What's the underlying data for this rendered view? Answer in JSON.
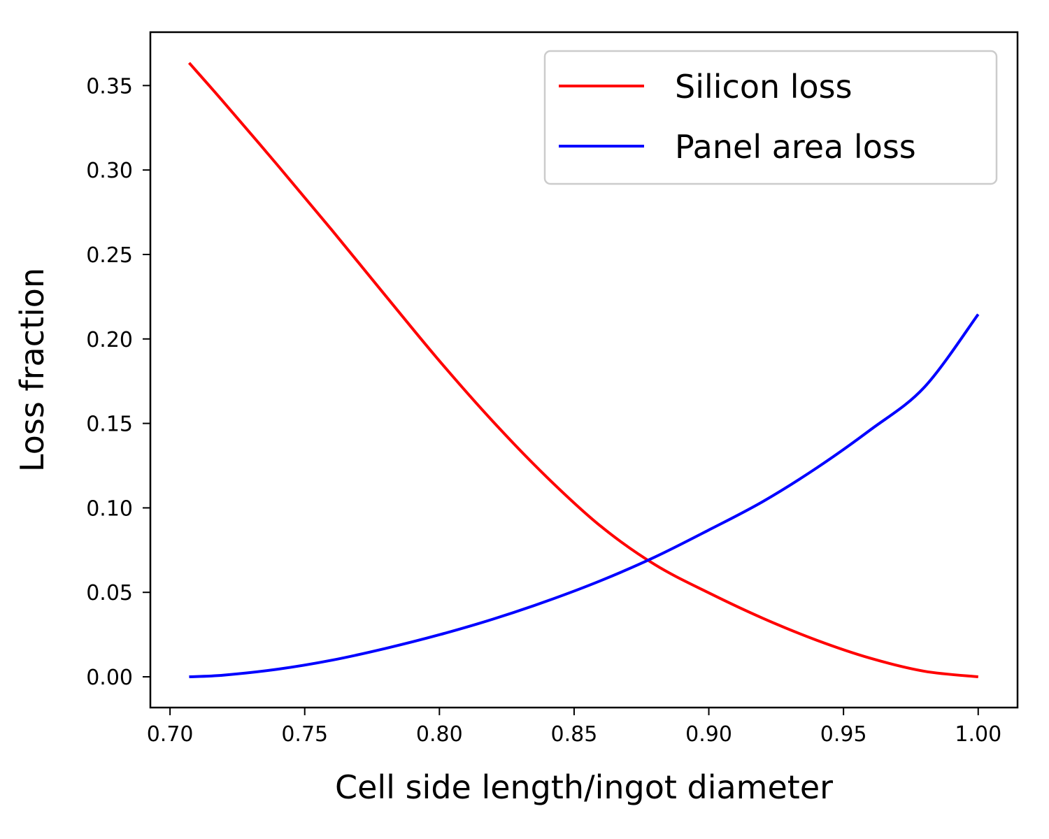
{
  "chart_data": {
    "type": "line",
    "title": "",
    "xlabel": "Cell side length/ingot diameter",
    "ylabel": "Loss fraction",
    "xlim": [
      0.6927,
      1.0146
    ],
    "ylim": [
      -0.0182,
      0.3816
    ],
    "xticks": [
      0.7,
      0.75,
      0.8,
      0.85,
      0.9,
      0.95,
      1.0
    ],
    "yticks": [
      0.0,
      0.05,
      0.1,
      0.15,
      0.2,
      0.25,
      0.3,
      0.35
    ],
    "xtick_labels": [
      "0.70",
      "0.75",
      "0.80",
      "0.85",
      "0.90",
      "0.95",
      "1.00"
    ],
    "ytick_labels": [
      "0.00",
      "0.05",
      "0.10",
      "0.15",
      "0.20",
      "0.25",
      "0.30",
      "0.35"
    ],
    "grid": false,
    "legend": "top-right",
    "series": [
      {
        "name": "Silicon loss",
        "color": "#ff0000",
        "x": [
          0.7071,
          0.72,
          0.74,
          0.76,
          0.78,
          0.8,
          0.82,
          0.84,
          0.86,
          0.88,
          0.9,
          0.92,
          0.94,
          0.96,
          0.98,
          1.0
        ],
        "y": [
          0.3634,
          0.34,
          0.3027,
          0.2646,
          0.2256,
          0.187,
          0.1509,
          0.118,
          0.089,
          0.0664,
          0.0497,
          0.0347,
          0.0217,
          0.011,
          0.0033,
          0.0
        ]
      },
      {
        "name": "Panel area loss",
        "color": "#0000ff",
        "x": [
          0.7071,
          0.72,
          0.74,
          0.76,
          0.78,
          0.8,
          0.82,
          0.84,
          0.86,
          0.88,
          0.9,
          0.92,
          0.94,
          0.96,
          0.98,
          1.0
        ],
        "y": [
          0.0,
          0.001,
          0.0045,
          0.0098,
          0.0168,
          0.0249,
          0.0342,
          0.0449,
          0.057,
          0.0709,
          0.0869,
          0.1037,
          0.1236,
          0.1462,
          0.1714,
          0.2146
        ]
      }
    ]
  }
}
